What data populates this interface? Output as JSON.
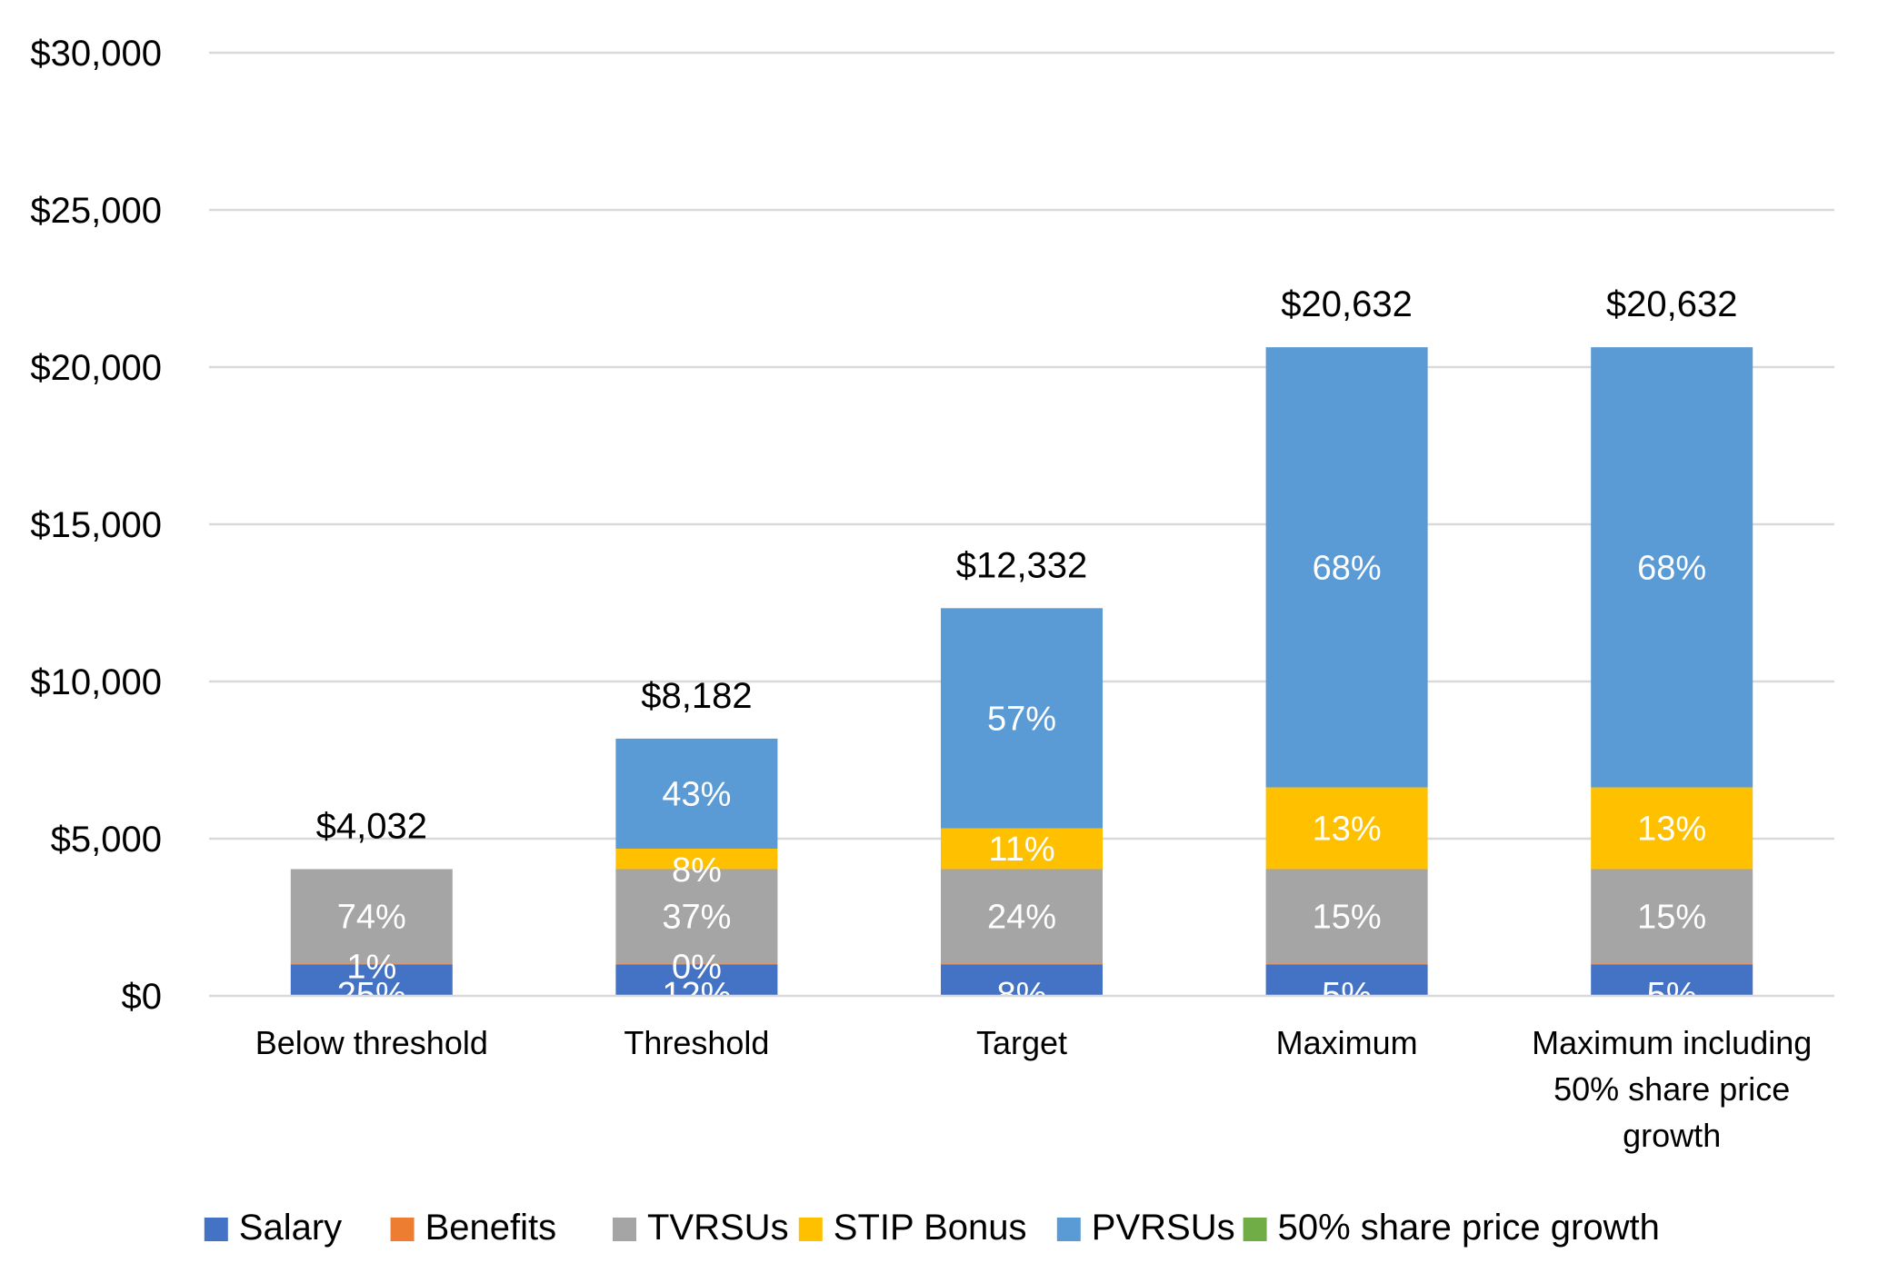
{
  "chart_data": {
    "type": "bar",
    "stacked": true,
    "categories": [
      "Below threshold",
      "Threshold",
      "Target",
      "Maximum",
      "Maximum including 50% share price growth"
    ],
    "series": [
      {
        "name": "Salary",
        "color": "#4472c4",
        "values": [
          1000,
          1000,
          1000,
          1000,
          1000
        ],
        "labels": [
          "25%",
          "12%",
          "8%",
          "5%",
          "5%"
        ]
      },
      {
        "name": "Benefits",
        "color": "#ed7d31",
        "values": [
          32,
          32,
          32,
          32,
          32
        ],
        "labels": [
          "1%",
          "0%",
          "",
          "",
          ""
        ]
      },
      {
        "name": "TVRSUs",
        "color": "#a5a5a5",
        "values": [
          3000,
          3000,
          3000,
          3000,
          3000
        ],
        "labels": [
          "74%",
          "37%",
          "24%",
          "15%",
          "15%"
        ]
      },
      {
        "name": "STIP Bonus",
        "color": "#ffc000",
        "values": [
          0,
          650,
          1300,
          2600,
          2600
        ],
        "labels": [
          "",
          "8%",
          "11%",
          "13%",
          "13%"
        ]
      },
      {
        "name": "PVRSUs",
        "color": "#5b9bd5",
        "values": [
          0,
          3500,
          7000,
          14000,
          14000
        ],
        "labels": [
          "",
          "43%",
          "57%",
          "68%",
          "68%"
        ]
      },
      {
        "name": "50% share price growth",
        "color": "#70ad47",
        "values": [
          0,
          0,
          0,
          0,
          0
        ],
        "labels": [
          "",
          "",
          "",
          "",
          ""
        ]
      }
    ],
    "totals": [
      "$4,032",
      "$8,182",
      "$12,332",
      "$20,632",
      "$20,632"
    ],
    "ylim": [
      0,
      30000
    ],
    "ytick_values": [
      0,
      5000,
      10000,
      15000,
      20000,
      25000,
      30000
    ],
    "ytick_labels": [
      "$0",
      "$5,000",
      "$10,000",
      "$15,000",
      "$20,000",
      "$25,000",
      "$30,000"
    ],
    "category_label_lines": [
      [
        "Below threshold"
      ],
      [
        "Threshold"
      ],
      [
        "Target"
      ],
      [
        "Maximum"
      ],
      [
        "Maximum including",
        "50% share price",
        "growth"
      ]
    ],
    "title": "",
    "xlabel": "",
    "ylabel": "",
    "grid": true,
    "legend_position": "bottom"
  }
}
